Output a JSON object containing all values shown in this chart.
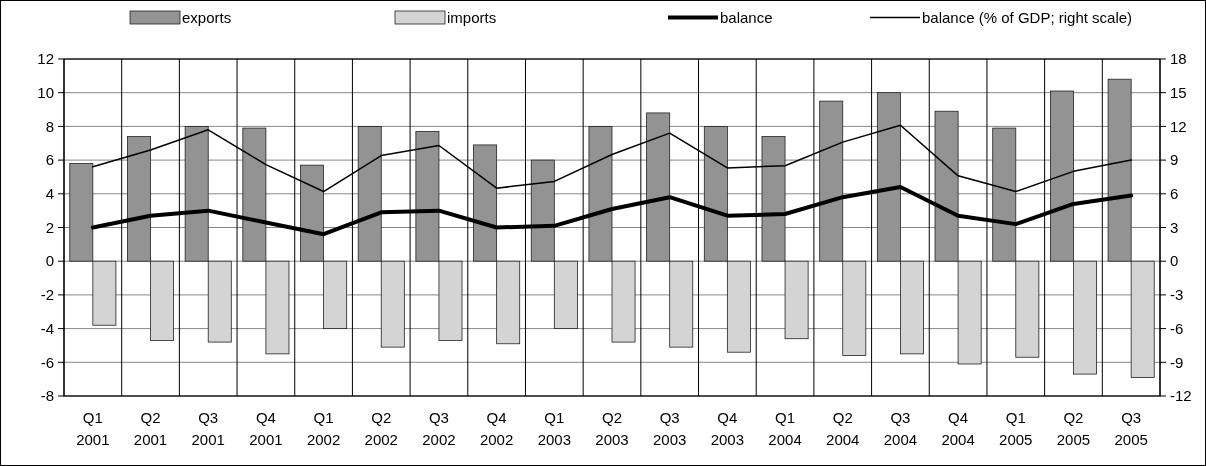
{
  "chart_data": {
    "type": "bar",
    "categories": [
      "Q1 2001",
      "Q2 2001",
      "Q3 2001",
      "Q4 2001",
      "Q1 2002",
      "Q2 2002",
      "Q3 2002",
      "Q4 2002",
      "Q1 2003",
      "Q2 2003",
      "Q3 2003",
      "Q4 2003",
      "Q1 2004",
      "Q2 2004",
      "Q3 2004",
      "Q4 2004",
      "Q1 2005",
      "Q2 2005",
      "Q3 2005"
    ],
    "series": [
      {
        "name": "exports",
        "color": "#939393",
        "values": [
          5.8,
          7.4,
          8.0,
          7.9,
          5.7,
          8.0,
          7.7,
          6.9,
          6.0,
          8.0,
          8.8,
          8.0,
          7.4,
          9.5,
          10.0,
          8.9,
          7.9,
          10.1,
          10.8
        ]
      },
      {
        "name": "imports",
        "color": "#d4d4d4",
        "values": [
          -3.8,
          -4.7,
          -4.8,
          -5.5,
          -4.0,
          -5.1,
          -4.7,
          -4.9,
          -4.0,
          -4.8,
          -5.1,
          -5.4,
          -4.6,
          -5.6,
          -5.5,
          -6.1,
          -5.7,
          -6.7,
          -6.9
        ]
      },
      {
        "name": "balance",
        "type": "line",
        "color": "#000000",
        "values": [
          2.0,
          2.7,
          3.0,
          2.3,
          1.6,
          2.9,
          3.0,
          2.0,
          2.1,
          3.1,
          3.8,
          2.7,
          2.8,
          3.8,
          4.4,
          2.7,
          2.2,
          3.4,
          3.9
        ]
      },
      {
        "name": "balance (% of GDP; right scale)",
        "type": "line",
        "axis": "y2",
        "color": "#000000",
        "values": [
          8.4,
          9.9,
          11.7,
          8.6,
          6.2,
          9.4,
          10.3,
          6.5,
          7.1,
          9.5,
          11.4,
          8.3,
          8.5,
          10.6,
          12.1,
          7.6,
          6.2,
          8.0,
          9.0
        ]
      }
    ],
    "ylim": [
      -8,
      12
    ],
    "yticks": [
      -8,
      -6,
      -4,
      -2,
      0,
      2,
      4,
      6,
      8,
      10,
      12
    ],
    "y2lim": [
      -12,
      18
    ],
    "y2ticks": [
      -12,
      -9,
      -6,
      -3,
      0,
      3,
      6,
      9,
      12,
      15,
      18
    ],
    "grid": true,
    "legend": "top",
    "marker": "none",
    "line_style": "solid"
  }
}
